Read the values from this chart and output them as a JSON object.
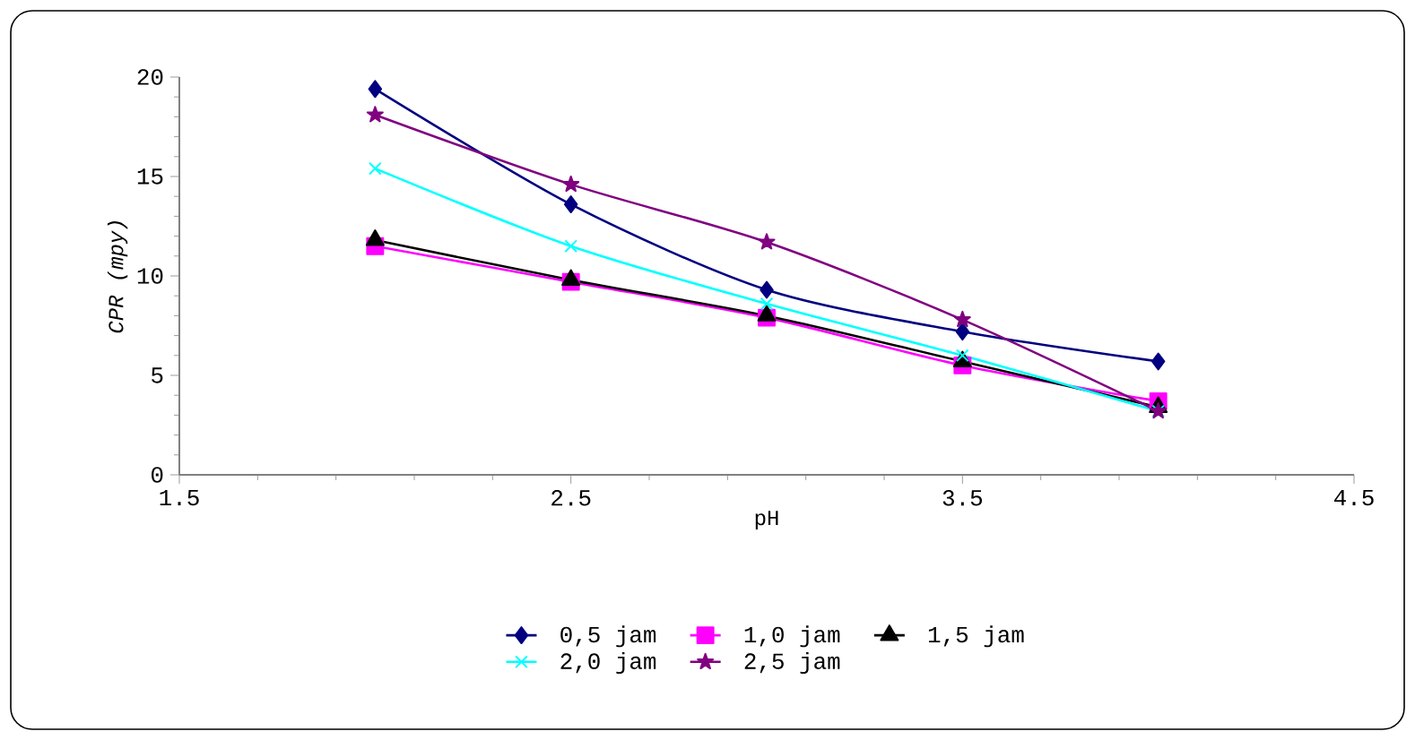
{
  "chart_data": {
    "type": "line",
    "xlabel": "pH",
    "ylabel": "CPR   (mpy)",
    "x": [
      2.0,
      2.5,
      3.0,
      3.5,
      4.0
    ],
    "series": [
      {
        "name": "0,5 jam",
        "color": "#000080",
        "marker": "diamond",
        "values": [
          19.4,
          13.6,
          9.3,
          7.2,
          5.7
        ]
      },
      {
        "name": "1,0 jam",
        "color": "#ff00ff",
        "marker": "square",
        "values": [
          11.5,
          9.7,
          7.9,
          5.5,
          3.7
        ]
      },
      {
        "name": "1,5 jam",
        "color": "#000000",
        "marker": "triangle",
        "values": [
          11.8,
          9.8,
          8.0,
          5.7,
          3.4
        ]
      },
      {
        "name": "2,0 jam",
        "color": "#00ffff",
        "marker": "cross",
        "values": [
          15.4,
          11.5,
          8.6,
          6.0,
          3.2
        ]
      },
      {
        "name": "2,5 jam",
        "color": "#800080",
        "marker": "star",
        "values": [
          18.1,
          14.6,
          11.7,
          7.8,
          3.2
        ]
      }
    ],
    "xlim": [
      1.5,
      4.5
    ],
    "xticks": [
      1.5,
      2.5,
      3.5,
      4.5
    ],
    "ylim": [
      0,
      20
    ],
    "yticks": [
      0,
      5,
      10,
      15,
      20
    ],
    "grid": false,
    "legend": "bottom"
  }
}
